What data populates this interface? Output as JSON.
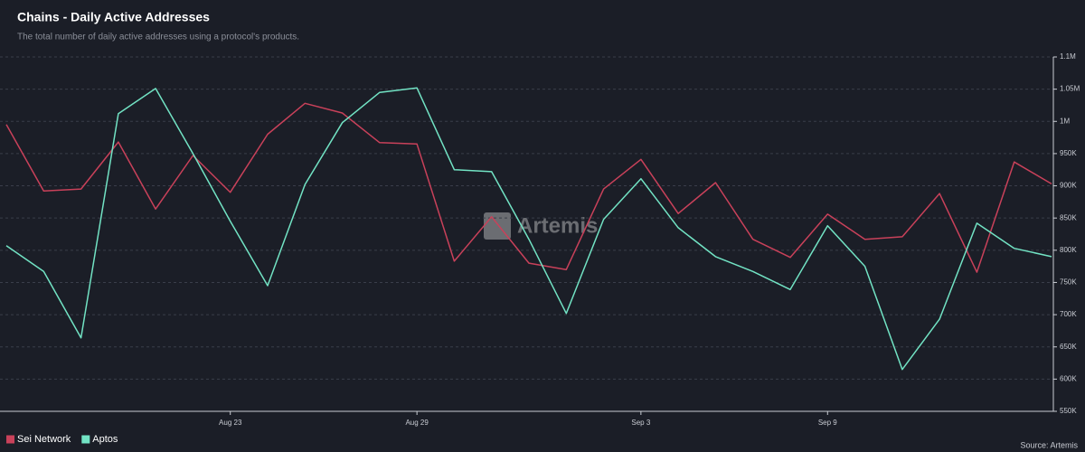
{
  "chart_data": {
    "type": "line",
    "title": "Chains - Daily Active Addresses",
    "subtitle": "The total number of daily active addresses using a protocol's products.",
    "watermark": "Artemis",
    "source": "Source: Artemis",
    "categories": [
      null,
      null,
      null,
      null,
      null,
      null,
      "Aug 23",
      null,
      null,
      null,
      null,
      "Aug 29",
      null,
      null,
      null,
      null,
      null,
      "Sep 3",
      null,
      null,
      null,
      null,
      "Sep 9",
      null,
      null,
      null,
      null,
      null,
      null
    ],
    "series": [
      {
        "name": "Sei Network",
        "color": "#c9415a",
        "values": [
          995000,
          892000,
          895000,
          968000,
          864000,
          947000,
          890000,
          980000,
          1028000,
          1013000,
          967000,
          965000,
          783000,
          852000,
          780000,
          770000,
          895000,
          941000,
          857000,
          905000,
          817000,
          789000,
          856000,
          817000,
          821000,
          888000,
          766000,
          937000,
          903000
        ]
      },
      {
        "name": "Aptos",
        "color": "#72e3c4",
        "values": [
          807000,
          767000,
          664000,
          1012000,
          1051000,
          950000,
          845000,
          745000,
          902000,
          998000,
          1045000,
          1052000,
          925000,
          922000,
          817000,
          702000,
          848000,
          911000,
          835000,
          790000,
          767000,
          739000,
          838000,
          775000,
          615000,
          693000,
          842000,
          803000,
          790000
        ]
      }
    ],
    "ylim": [
      550000,
      1100000
    ],
    "yticks": [
      {
        "value": 550000,
        "label": "550K"
      },
      {
        "value": 600000,
        "label": "600K"
      },
      {
        "value": 650000,
        "label": "650K"
      },
      {
        "value": 700000,
        "label": "700K"
      },
      {
        "value": 750000,
        "label": "750K"
      },
      {
        "value": 800000,
        "label": "800K"
      },
      {
        "value": 850000,
        "label": "850K"
      },
      {
        "value": 900000,
        "label": "900K"
      },
      {
        "value": 950000,
        "label": "950K"
      },
      {
        "value": 1000000,
        "label": "1M"
      },
      {
        "value": 1050000,
        "label": "1.05M"
      },
      {
        "value": 1100000,
        "label": "1.1M"
      }
    ],
    "grid": true,
    "legend": "bottom-left"
  }
}
